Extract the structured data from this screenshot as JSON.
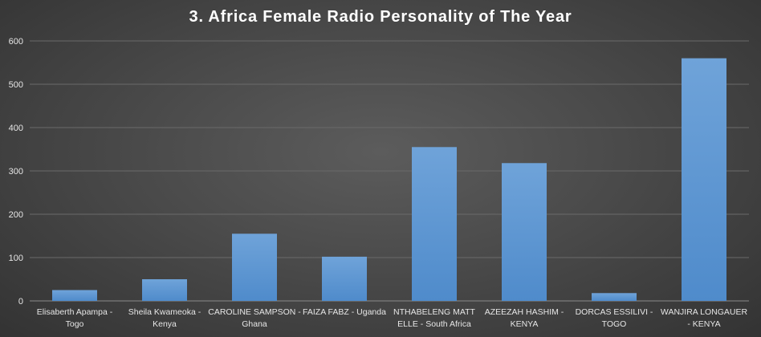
{
  "chart_data": {
    "type": "bar",
    "title": "3. Africa Female Radio Personality of The Year",
    "categories": [
      [
        "Elisaberth Apampa -",
        "Togo"
      ],
      [
        "Sheila Kwameoka -",
        "Kenya"
      ],
      [
        "CAROLINE SAMPSON -",
        "Ghana"
      ],
      [
        "FAIZA FABZ - Uganda"
      ],
      [
        "NTHABELENG MATT",
        "ELLE - South Africa"
      ],
      [
        "AZEEZAH HASHIM -",
        "KENYA"
      ],
      [
        "DORCAS ESSILIVI -",
        "TOGO"
      ],
      [
        "WANJIRA LONGAUER",
        "- KENYA"
      ]
    ],
    "values": [
      25,
      50,
      155,
      102,
      355,
      318,
      18,
      560
    ],
    "ylim": [
      0,
      600
    ],
    "yticks": [
      0,
      100,
      200,
      300,
      400,
      500,
      600
    ],
    "grid": true,
    "legend": "none",
    "colors": {
      "bar_top": "#6fa3d9",
      "bar_bottom": "#4f8bcb",
      "grid": "#6a6a6a",
      "text": "#e6e6e6"
    }
  }
}
